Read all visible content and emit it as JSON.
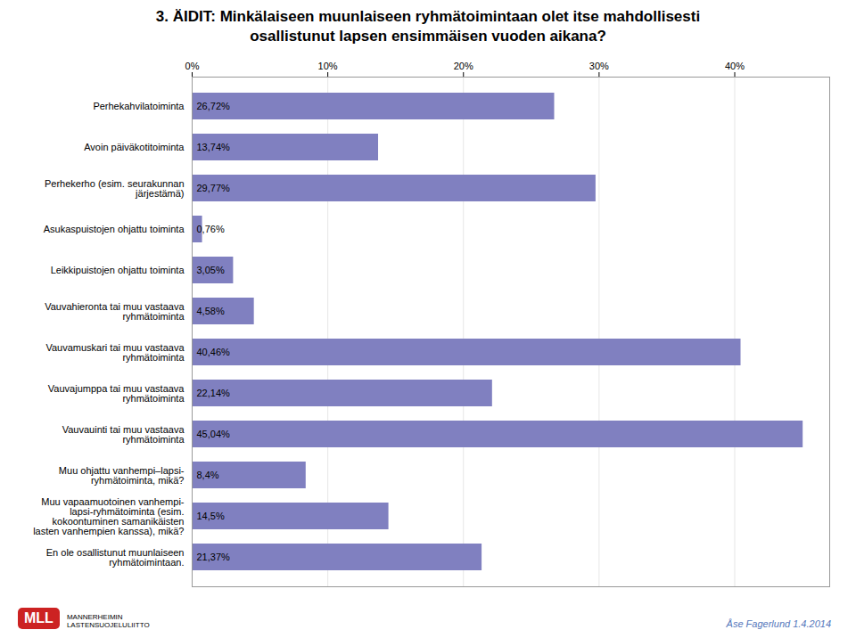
{
  "chart_data": {
    "type": "bar",
    "orientation": "horizontal",
    "title": "3. ÄIDIT: Minkälaiseen muunlaiseen ryhmätoimintaan olet itse mahdollisesti\nosallistunut lapsen ensimmäisen vuoden aikana?",
    "categories": [
      "Perhekahvilatoiminta",
      "Avoin päiväkotitoiminta",
      "Perhekerho (esim. seurakunnan\njärjestämä)",
      "Asukaspuistojen ohjattu toiminta",
      "Leikkipuistojen ohjattu toiminta",
      "Vauvahieronta tai muu vastaava\nryhmätoiminta",
      "Vauvamuskari tai muu vastaava\nryhmätoiminta",
      "Vauvajumppa tai muu vastaava\nryhmätoiminta",
      "Vauvauinti tai muu vastaava\nryhmätoiminta",
      "Muu ohjattu vanhempi–lapsi-\nryhmätoiminta, mikä?",
      "Muu vapaamuotoinen vanhempi-\nlapsi-ryhmätoiminta (esim.\nkokoontuminen samanikäisten\nlasten vanhempien kanssa), mikä?",
      "En ole osallistunut muunlaiseen\nryhmätoimintaan."
    ],
    "values": [
      26.72,
      13.74,
      29.77,
      0.76,
      3.05,
      4.58,
      40.46,
      22.14,
      45.04,
      8.4,
      14.5,
      21.37
    ],
    "value_labels": [
      "26,72%",
      "13,74%",
      "29,77%",
      "0,76%",
      "3,05%",
      "4,58%",
      "40,46%",
      "22,14%",
      "45,04%",
      "8,4%",
      "14,5%",
      "21,37%"
    ],
    "data_labels": true,
    "color": "#8080C0",
    "xlim": [
      0,
      47
    ],
    "xticks": [
      {
        "value": 0,
        "label": "0%"
      },
      {
        "value": 10,
        "label": "10%"
      },
      {
        "value": 20,
        "label": "20%"
      },
      {
        "value": 30,
        "label": "30%"
      },
      {
        "value": 40,
        "label": "40%"
      }
    ],
    "grid": true,
    "annotations": [
      "Åse Fagerlund 1.4.2014",
      "MLL",
      "MANNERHEIMIN\nLASTENSUOJELULIITTO"
    ]
  }
}
